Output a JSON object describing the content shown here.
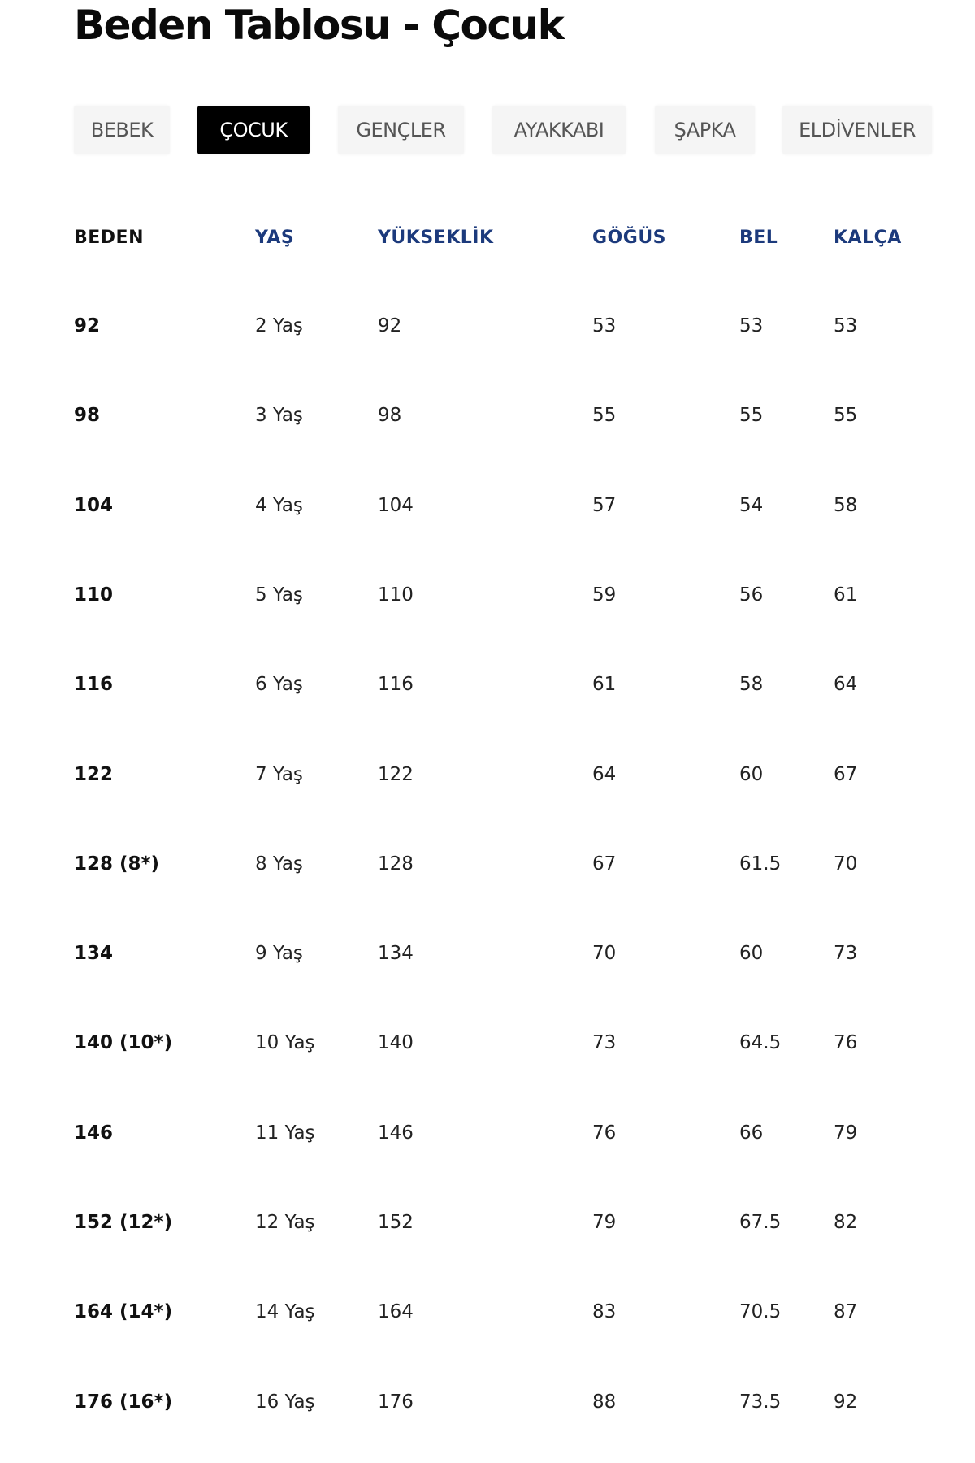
{
  "title": "Beden Tablosu - Çocuk",
  "tabs": [
    {
      "label": "BEBEK",
      "active": false
    },
    {
      "label": "ÇOCUK",
      "active": true
    },
    {
      "label": "GENÇLER",
      "active": false
    },
    {
      "label": "AYAKKABI",
      "active": false
    },
    {
      "label": "ŞAPKA",
      "active": false
    },
    {
      "label": "ELDİVENLER",
      "active": false
    }
  ],
  "colors": {
    "header_blue": "#1c3a7c",
    "active_tab_bg": "#000000",
    "tab_bg": "#f5f5f5"
  },
  "table": {
    "headers": [
      "BEDEN",
      "YAŞ",
      "YÜKSEKLİK",
      "GÖĞÜS",
      "BEL",
      "KALÇA"
    ],
    "rows": [
      [
        "92",
        "2 Yaş",
        "92",
        "53",
        "53",
        "53"
      ],
      [
        "98",
        "3 Yaş",
        "98",
        "55",
        "55",
        "55"
      ],
      [
        "104",
        "4 Yaş",
        "104",
        "57",
        "54",
        "58"
      ],
      [
        "110",
        "5 Yaş",
        "110",
        "59",
        "56",
        "61"
      ],
      [
        "116",
        "6 Yaş",
        "116",
        "61",
        "58",
        "64"
      ],
      [
        "122",
        "7 Yaş",
        "122",
        "64",
        "60",
        "67"
      ],
      [
        "128 (8*)",
        "8 Yaş",
        "128",
        "67",
        "61.5",
        "70"
      ],
      [
        "134",
        "9 Yaş",
        "134",
        "70",
        "60",
        "73"
      ],
      [
        "140 (10*)",
        "10 Yaş",
        "140",
        "73",
        "64.5",
        "76"
      ],
      [
        "146",
        "11 Yaş",
        "146",
        "76",
        "66",
        "79"
      ],
      [
        "152 (12*)",
        "12 Yaş",
        "152",
        "79",
        "67.5",
        "82"
      ],
      [
        "164 (14*)",
        "14 Yaş",
        "164",
        "83",
        "70.5",
        "87"
      ],
      [
        "176 (16*)",
        "16 Yaş",
        "176",
        "88",
        "73.5",
        "92"
      ]
    ]
  }
}
